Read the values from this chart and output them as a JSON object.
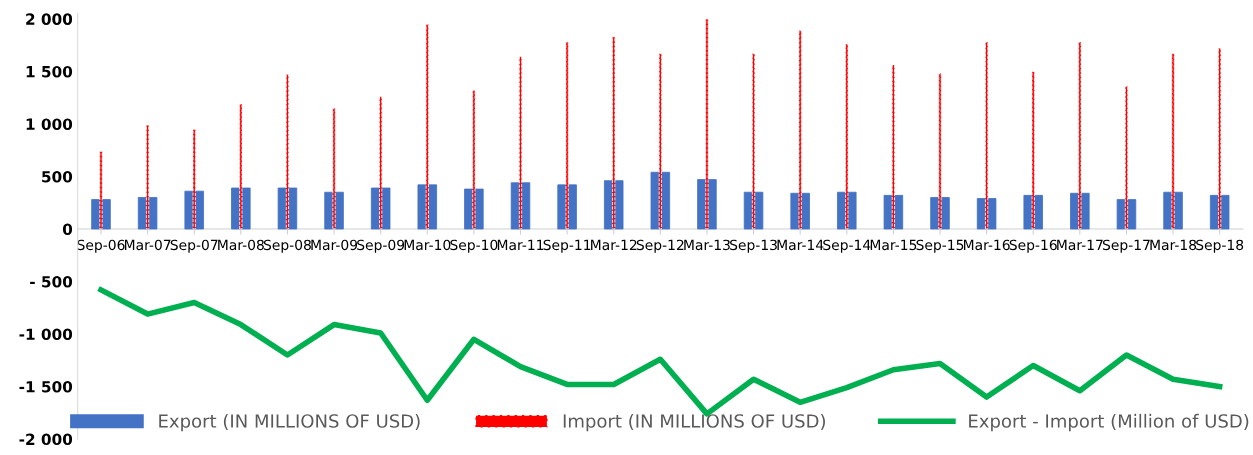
{
  "chart_data": {
    "type": "bar",
    "categories": [
      "Sep-06",
      "Mar-07",
      "Sep-07",
      "Mar-08",
      "Sep-08",
      "Mar-09",
      "Sep-09",
      "Mar-10",
      "Sep-10",
      "Mar-11",
      "Sep-11",
      "Mar-12",
      "Sep-12",
      "Mar-13",
      "Sep-13",
      "Mar-14",
      "Sep-14",
      "Mar-15",
      "Sep-15",
      "Mar-16",
      "Sep-16",
      "Mar-17",
      "Sep-17",
      "Mar-18",
      "Sep-18"
    ],
    "series": [
      {
        "name": "Export (IN MILLIONS OF USD)",
        "color": "#4472c4",
        "values": [
          280,
          300,
          360,
          390,
          390,
          350,
          390,
          420,
          380,
          440,
          420,
          460,
          540,
          470,
          350,
          340,
          350,
          320,
          300,
          290,
          320,
          340,
          280,
          350,
          320
        ]
      },
      {
        "name": "Import (IN MILLIONS OF USD)",
        "color": "#ff0000",
        "line_style": "dashed",
        "values": [
          740,
          990,
          950,
          1190,
          1470,
          1150,
          1260,
          1950,
          1320,
          1640,
          1780,
          1830,
          1670,
          2000,
          1670,
          1890,
          1760,
          1560,
          1480,
          1780,
          1500,
          1780,
          1360,
          1670,
          1720
        ]
      },
      {
        "name": "Export - Import (Million of USD)",
        "type": "line",
        "color": "#00b050",
        "values": [
          -580,
          -810,
          -700,
          -910,
          -1200,
          -910,
          -990,
          -1630,
          -1050,
          -1310,
          -1480,
          -1480,
          -1240,
          -1760,
          -1430,
          -1650,
          -1510,
          -1340,
          -1280,
          -1600,
          -1300,
          -1540,
          -1200,
          -1430,
          -1500
        ]
      }
    ],
    "ylim": [
      -2000,
      2050
    ],
    "yticks": [
      {
        "value": -2000,
        "label": "-2 000"
      },
      {
        "value": -1500,
        "label": "-1 500"
      },
      {
        "value": -1000,
        "label": "-1 000"
      },
      {
        "value": -500,
        "label": "- 500"
      },
      0,
      500,
      {
        "value": 1000,
        "label": "1 000"
      },
      {
        "value": 1500,
        "label": "1 500"
      },
      {
        "value": 2000,
        "label": "2 000"
      }
    ],
    "grid": false,
    "legend": "bottom"
  }
}
